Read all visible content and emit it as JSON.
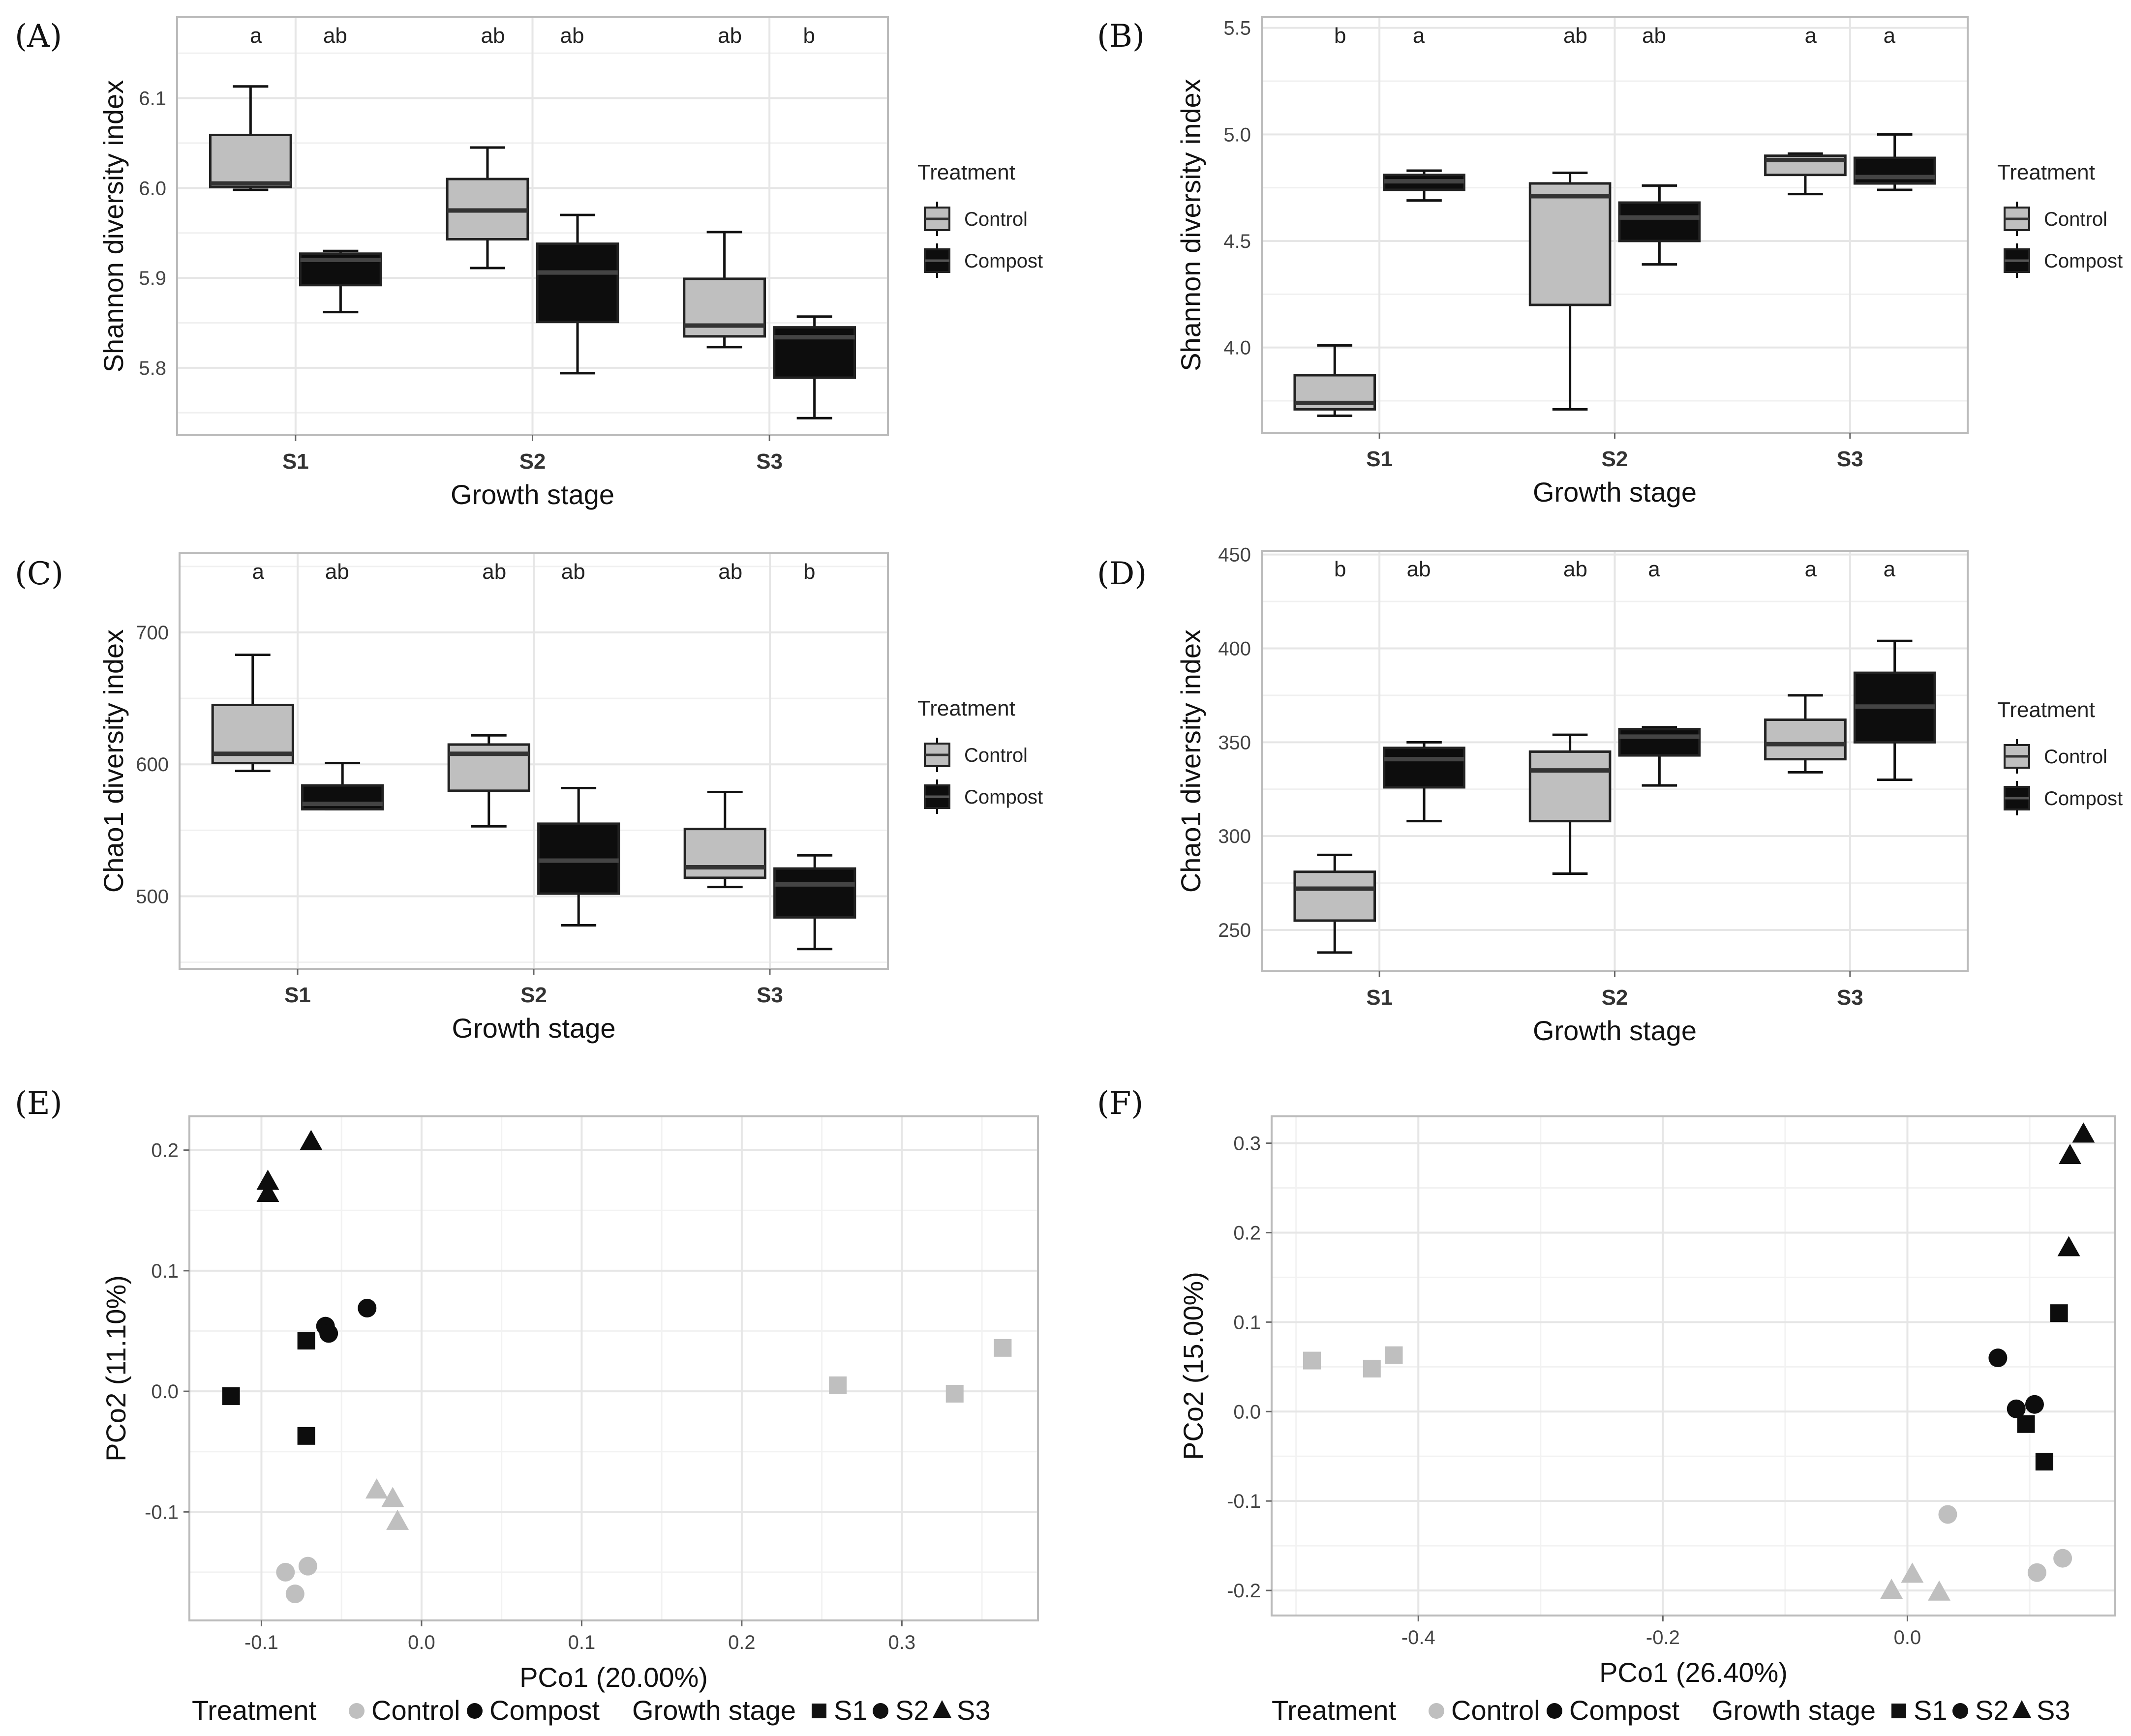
{
  "colors": {
    "control": "#bfbfbf",
    "compost": "#0d0d0d",
    "grid": "#e6e6e6",
    "frame": "#bbbbbb"
  },
  "legend": {
    "title": "Treatment",
    "items": [
      "Control",
      "Compost"
    ]
  },
  "bottom_legend": {
    "treatment_title": "Treatment",
    "control": "Control",
    "compost": "Compost",
    "stage_title": "Growth stage",
    "s1": "S1",
    "s2": "S2",
    "s3": "S3"
  },
  "chart_data": [
    {
      "panel": "(A)",
      "type": "box",
      "xlabel": "Growth stage",
      "ylabel": "Shannon diversity index",
      "categories": [
        "S1",
        "S2",
        "S3"
      ],
      "ylim": [
        5.725,
        6.19
      ],
      "yticks": [
        5.8,
        5.9,
        6.0,
        6.1
      ],
      "series": [
        {
          "name": "Control",
          "boxes": [
            {
              "min": 5.998,
              "q1": 6.001,
              "median": 6.005,
              "q3": 6.059,
              "max": 6.113
            },
            {
              "min": 5.911,
              "q1": 5.943,
              "median": 5.975,
              "q3": 6.01,
              "max": 6.045
            },
            {
              "min": 5.823,
              "q1": 5.835,
              "median": 5.847,
              "q3": 5.899,
              "max": 5.951
            }
          ]
        },
        {
          "name": "Compost",
          "boxes": [
            {
              "min": 5.862,
              "q1": 5.892,
              "median": 5.92,
              "q3": 5.927,
              "max": 5.93
            },
            {
              "min": 5.794,
              "q1": 5.851,
              "median": 5.906,
              "q3": 5.938,
              "max": 5.97
            },
            {
              "min": 5.744,
              "q1": 5.789,
              "median": 5.834,
              "q3": 5.845,
              "max": 5.857
            }
          ]
        }
      ],
      "letters": [
        [
          "a",
          "ab",
          "ab"
        ],
        [
          "ab",
          "ab",
          "b"
        ]
      ]
    },
    {
      "panel": "(B)",
      "type": "box",
      "xlabel": "Growth stage",
      "ylabel": "Shannon diversity index",
      "categories": [
        "S1",
        "S2",
        "S3"
      ],
      "ylim": [
        3.6,
        5.55
      ],
      "yticks": [
        4.0,
        4.5,
        5.0,
        5.5
      ],
      "series": [
        {
          "name": "Control",
          "boxes": [
            {
              "min": 3.68,
              "q1": 3.71,
              "median": 3.74,
              "q3": 3.87,
              "max": 4.01
            },
            {
              "min": 3.71,
              "q1": 4.2,
              "median": 4.71,
              "q3": 4.77,
              "max": 4.82
            },
            {
              "min": 4.72,
              "q1": 4.81,
              "median": 4.88,
              "q3": 4.9,
              "max": 4.91
            }
          ]
        },
        {
          "name": "Compost",
          "boxes": [
            {
              "min": 4.69,
              "q1": 4.74,
              "median": 4.78,
              "q3": 4.81,
              "max": 4.83
            },
            {
              "min": 4.39,
              "q1": 4.5,
              "median": 4.61,
              "q3": 4.68,
              "max": 4.76
            },
            {
              "min": 4.74,
              "q1": 4.77,
              "median": 4.8,
              "q3": 4.89,
              "max": 5.0
            }
          ]
        }
      ],
      "letters": [
        [
          "b",
          "ab",
          "a"
        ],
        [
          "a",
          "ab",
          "a"
        ]
      ]
    },
    {
      "panel": "(C)",
      "type": "box",
      "xlabel": "Growth stage",
      "ylabel": "Chao1 diversity index",
      "categories": [
        "S1",
        "S2",
        "S3"
      ],
      "ylim": [
        445,
        760
      ],
      "yticks": [
        500,
        600,
        700
      ],
      "series": [
        {
          "name": "Control",
          "boxes": [
            {
              "min": 595,
              "q1": 601,
              "median": 608,
              "q3": 645,
              "max": 683
            },
            {
              "min": 553,
              "q1": 580,
              "median": 608,
              "q3": 615,
              "max": 622
            },
            {
              "min": 507,
              "q1": 514,
              "median": 522,
              "q3": 551,
              "max": 579
            }
          ]
        },
        {
          "name": "Compost",
          "boxes": [
            {
              "min": 566,
              "q1": 566,
              "median": 570,
              "q3": 584,
              "max": 601
            },
            {
              "min": 478,
              "q1": 502,
              "median": 527,
              "q3": 555,
              "max": 582
            },
            {
              "min": 460,
              "q1": 484,
              "median": 509,
              "q3": 521,
              "max": 531
            }
          ]
        }
      ],
      "letters": [
        [
          "a",
          "ab",
          "ab"
        ],
        [
          "ab",
          "ab",
          "b"
        ]
      ]
    },
    {
      "panel": "(D)",
      "type": "box",
      "xlabel": "Growth stage",
      "ylabel": "Chao1 diversity index",
      "categories": [
        "S1",
        "S2",
        "S3"
      ],
      "ylim": [
        228,
        452
      ],
      "yticks": [
        250,
        300,
        350,
        400,
        450
      ],
      "series": [
        {
          "name": "Control",
          "boxes": [
            {
              "min": 238,
              "q1": 255,
              "median": 272,
              "q3": 281,
              "max": 290
            },
            {
              "min": 280,
              "q1": 308,
              "median": 335,
              "q3": 345,
              "max": 354
            },
            {
              "min": 334,
              "q1": 341,
              "median": 349,
              "q3": 362,
              "max": 375
            }
          ]
        },
        {
          "name": "Compost",
          "boxes": [
            {
              "min": 308,
              "q1": 326,
              "median": 341,
              "q3": 347,
              "max": 350
            },
            {
              "min": 327,
              "q1": 343,
              "median": 353,
              "q3": 357,
              "max": 358
            },
            {
              "min": 330,
              "q1": 350,
              "median": 369,
              "q3": 387,
              "max": 404
            }
          ]
        }
      ],
      "letters": [
        [
          "b",
          "ab",
          "a"
        ],
        [
          "ab",
          "a",
          "a"
        ]
      ]
    },
    {
      "panel": "(E)",
      "type": "scatter",
      "xlabel": "PCo1 (20.00%)",
      "ylabel": "PCo2 (11.10%)",
      "xlim": [
        -0.145,
        0.385
      ],
      "ylim": [
        -0.19,
        0.228
      ],
      "xticks": [
        -0.1,
        0.0,
        0.1,
        0.2,
        0.3
      ],
      "yticks": [
        -0.1,
        0.0,
        0.1,
        0.2
      ],
      "xticklabels": [
        "-0.1",
        "0.0",
        "0.1",
        "0.2",
        "0.3"
      ],
      "yticklabels": [
        "-0.1",
        "0.0",
        "0.1",
        "0.2"
      ],
      "points": [
        {
          "x": -0.069,
          "y": 0.207,
          "treatment": "Compost",
          "stage": "S3"
        },
        {
          "x": -0.096,
          "y": 0.174,
          "treatment": "Compost",
          "stage": "S3"
        },
        {
          "x": -0.096,
          "y": 0.164,
          "treatment": "Compost",
          "stage": "S3"
        },
        {
          "x": -0.034,
          "y": 0.069,
          "treatment": "Compost",
          "stage": "S2"
        },
        {
          "x": -0.06,
          "y": 0.054,
          "treatment": "Compost",
          "stage": "S2"
        },
        {
          "x": -0.058,
          "y": 0.048,
          "treatment": "Compost",
          "stage": "S2"
        },
        {
          "x": -0.072,
          "y": 0.042,
          "treatment": "Compost",
          "stage": "S1"
        },
        {
          "x": -0.119,
          "y": -0.004,
          "treatment": "Compost",
          "stage": "S1"
        },
        {
          "x": -0.072,
          "y": -0.037,
          "treatment": "Compost",
          "stage": "S1"
        },
        {
          "x": -0.028,
          "y": -0.082,
          "treatment": "Control",
          "stage": "S3"
        },
        {
          "x": -0.018,
          "y": -0.089,
          "treatment": "Control",
          "stage": "S3"
        },
        {
          "x": -0.015,
          "y": -0.108,
          "treatment": "Control",
          "stage": "S3"
        },
        {
          "x": -0.085,
          "y": -0.15,
          "treatment": "Control",
          "stage": "S2"
        },
        {
          "x": -0.071,
          "y": -0.145,
          "treatment": "Control",
          "stage": "S2"
        },
        {
          "x": -0.079,
          "y": -0.168,
          "treatment": "Control",
          "stage": "S2"
        },
        {
          "x": 0.26,
          "y": 0.005,
          "treatment": "Control",
          "stage": "S1"
        },
        {
          "x": 0.333,
          "y": -0.002,
          "treatment": "Control",
          "stage": "S1"
        },
        {
          "x": 0.363,
          "y": 0.036,
          "treatment": "Control",
          "stage": "S1"
        }
      ]
    },
    {
      "panel": "(F)",
      "type": "scatter",
      "xlabel": "PCo1 (26.40%)",
      "ylabel": "PCo2 (15.00%)",
      "xlim": [
        -0.52,
        0.17
      ],
      "ylim": [
        -0.228,
        0.33
      ],
      "xticks": [
        -0.4,
        -0.2,
        0.0
      ],
      "yticks": [
        -0.2,
        -0.1,
        0.0,
        0.1,
        0.2,
        0.3
      ],
      "xticklabels": [
        "-0.4",
        "-0.2",
        "0.0"
      ],
      "yticklabels": [
        "-0.2",
        "-0.1",
        "0.0",
        "0.1",
        "0.2",
        "0.3"
      ],
      "points": [
        {
          "x": 0.144,
          "y": 0.31,
          "treatment": "Compost",
          "stage": "S3"
        },
        {
          "x": 0.133,
          "y": 0.286,
          "treatment": "Compost",
          "stage": "S3"
        },
        {
          "x": 0.132,
          "y": 0.183,
          "treatment": "Compost",
          "stage": "S3"
        },
        {
          "x": 0.124,
          "y": 0.11,
          "treatment": "Compost",
          "stage": "S1"
        },
        {
          "x": 0.097,
          "y": -0.014,
          "treatment": "Compost",
          "stage": "S1"
        },
        {
          "x": 0.112,
          "y": -0.056,
          "treatment": "Compost",
          "stage": "S1"
        },
        {
          "x": 0.074,
          "y": 0.06,
          "treatment": "Compost",
          "stage": "S2"
        },
        {
          "x": 0.089,
          "y": 0.003,
          "treatment": "Compost",
          "stage": "S2"
        },
        {
          "x": 0.104,
          "y": 0.008,
          "treatment": "Compost",
          "stage": "S2"
        },
        {
          "x": -0.487,
          "y": 0.057,
          "treatment": "Control",
          "stage": "S1"
        },
        {
          "x": -0.438,
          "y": 0.048,
          "treatment": "Control",
          "stage": "S1"
        },
        {
          "x": -0.42,
          "y": 0.063,
          "treatment": "Control",
          "stage": "S1"
        },
        {
          "x": 0.033,
          "y": -0.115,
          "treatment": "Control",
          "stage": "S2"
        },
        {
          "x": 0.106,
          "y": -0.18,
          "treatment": "Control",
          "stage": "S2"
        },
        {
          "x": 0.127,
          "y": -0.164,
          "treatment": "Control",
          "stage": "S2"
        },
        {
          "x": -0.013,
          "y": -0.2,
          "treatment": "Control",
          "stage": "S3"
        },
        {
          "x": 0.004,
          "y": -0.182,
          "treatment": "Control",
          "stage": "S3"
        },
        {
          "x": 0.026,
          "y": -0.202,
          "treatment": "Control",
          "stage": "S3"
        }
      ]
    }
  ]
}
